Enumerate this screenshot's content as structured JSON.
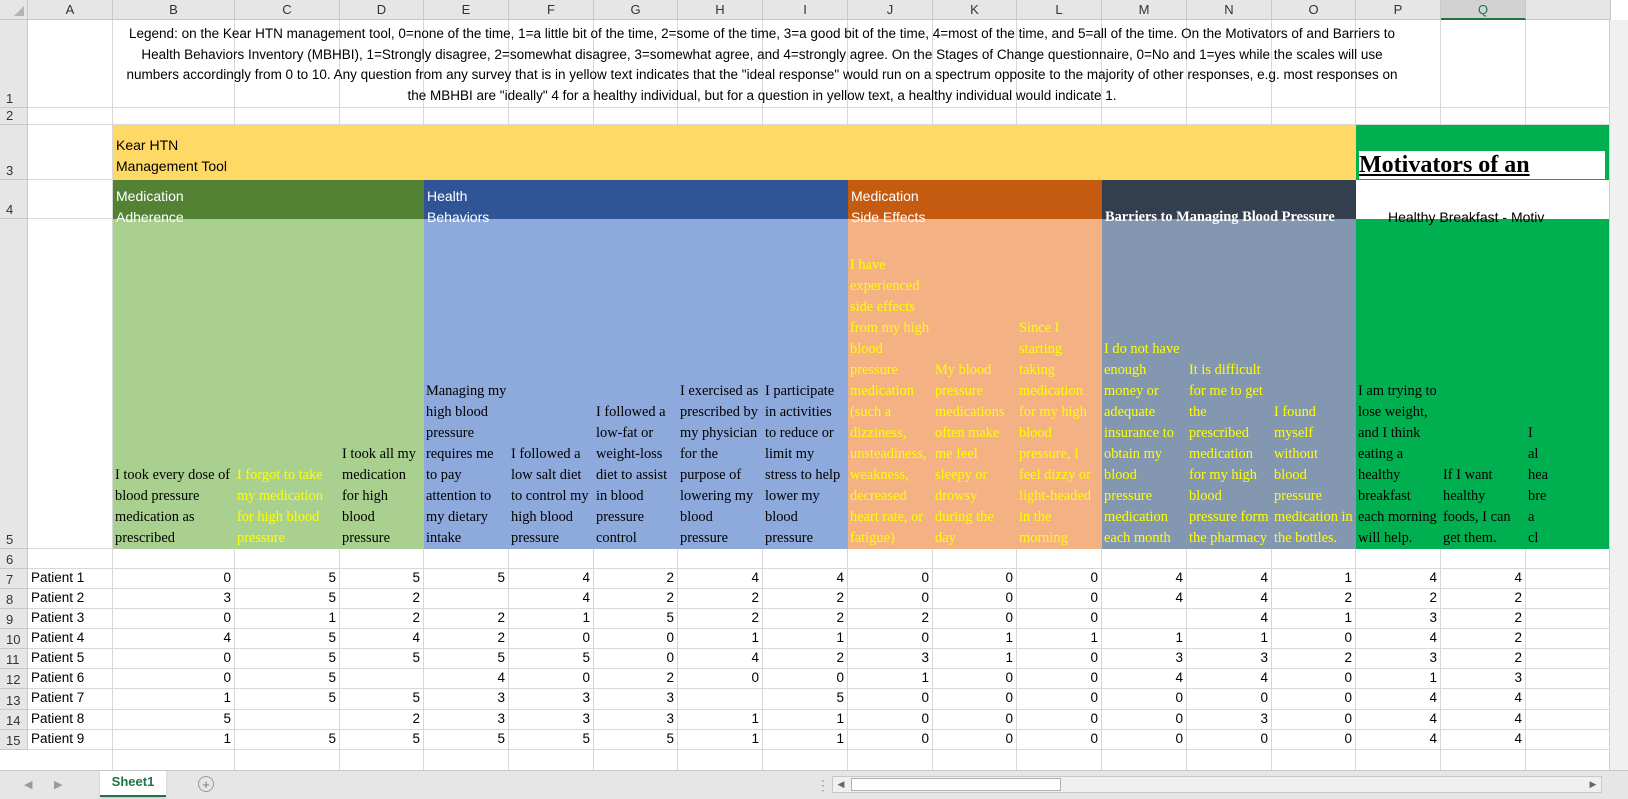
{
  "columns": [
    "A",
    "B",
    "C",
    "D",
    "E",
    "F",
    "G",
    "H",
    "I",
    "J",
    "K",
    "L",
    "M",
    "N",
    "O",
    "P",
    "Q"
  ],
  "selected_column": "Q",
  "rows": [
    "1",
    "2",
    "3",
    "4",
    "5",
    "6",
    "7",
    "8",
    "9",
    "10",
    "11",
    "12",
    "13",
    "14",
    "15"
  ],
  "legend": "Legend: on the Kear HTN management tool, 0=none of the time, 1=a little bit of the time, 2=some of the time, 3=a good bit of the time, 4=most of the time, and 5=all of the time. On the Motivators of and Barriers to Health Behaviors Inventory (MBHBI), 1=Strongly disagree, 2=somewhat disagree, 3=somewhat agree, and 4=strongly agree. On the Stages of Change questionnaire, 0=No and 1=yes while the scales will use numbers accordingly from 0 to 10. Any question from any survey that is in yellow text indicates that the \"ideal response\" would run on a spectrum opposite to the majority of other responses, e.g. most responses on the MBHBI are \"ideally\" 4 for a healthy individual, but for a question in yellow text, a healthy individual would indicate 1.",
  "kear_title_line1": "Kear HTN",
  "kear_title_line2": "Management Tool",
  "motivators_title": "Motivators of an",
  "sections": {
    "med_adherence": {
      "line1": "Medication",
      "line2": "Adherence",
      "color": "#548235",
      "light": "#a9d08e"
    },
    "health_behaviors": {
      "line1": "Health",
      "line2": "Behaviors",
      "color": "#2f5597",
      "light": "#8ea9db"
    },
    "side_effects": {
      "line1": "Medication",
      "line2": "Side Effects",
      "color": "#c55a11",
      "light": "#f4b183"
    },
    "barriers": {
      "line1": "Barriers to Managing Blood Pressure",
      "color": "#333f4f",
      "light": "#8497b0"
    },
    "breakfast": {
      "line1": "Healthy Breakfast - Motiv",
      "color": "#00b050"
    }
  },
  "questions": {
    "B": "I took every dose of blood pressure medication as prescribed",
    "C": "I forgot to take my medication for high blood pressure",
    "D": "I took all my medication for high blood pressure",
    "E": "Managing my high blood pressure requires me to pay attention to my dietary intake",
    "F": "I followed a low salt diet to control my high blood pressure",
    "G": "I followed a low-fat or weight-loss diet to assist in blood pressure control",
    "H": "I exercised as prescribed by my physician for the purpose of lowering my blood pressure",
    "I": "I participate in activities to reduce or limit my stress to help lower my blood pressure",
    "J": "I have experienced side effects from my high blood pressure medication (such a dizziness, unsteadiness, weakness, decreased heart rate, or fatigue)",
    "K": "My blood pressure medications often make me feel sleepy or drowsy during the day",
    "L": "Since I starting taking medication for my high blood pressure, I feel dizzy or light-headed in the morning",
    "M": "I do not have enough money or adequate insurance to obtain my blood pressure medication each month",
    "N": "It is difficult for me to get the prescribed medication for my high blood pressure form the pharmacy",
    "O": "I found myself without blood pressure medication in the bottles.",
    "P": "I am trying to lose weight, and I think eating a healthy breakfast each morning will help.",
    "Q": "If I want healthy foods, I can get them.",
    "R": "I al hea bre a cl"
  },
  "patients": [
    {
      "name": "Patient 1",
      "v": {
        "B": "0",
        "C": "5",
        "D": "5",
        "E": "5",
        "F": "4",
        "G": "2",
        "H": "4",
        "I": "4",
        "J": "0",
        "K": "0",
        "L": "0",
        "M": "4",
        "N": "4",
        "O": "1",
        "P": "4",
        "Q": "4"
      }
    },
    {
      "name": "Patient 2",
      "v": {
        "B": "3",
        "C": "5",
        "D": "2",
        "E": "",
        "F": "4",
        "G": "2",
        "H": "2",
        "I": "2",
        "J": "0",
        "K": "0",
        "L": "0",
        "M": "4",
        "N": "4",
        "O": "2",
        "P": "2",
        "Q": "2"
      }
    },
    {
      "name": "Patient 3",
      "v": {
        "B": "0",
        "C": "1",
        "D": "2",
        "E": "2",
        "F": "1",
        "G": "5",
        "H": "2",
        "I": "2",
        "J": "2",
        "K": "0",
        "L": "0",
        "M": "",
        "N": "4",
        "O": "1",
        "P": "3",
        "Q": "2"
      }
    },
    {
      "name": "Patient 4",
      "v": {
        "B": "4",
        "C": "5",
        "D": "4",
        "E": "2",
        "F": "0",
        "G": "0",
        "H": "1",
        "I": "1",
        "J": "0",
        "K": "1",
        "L": "1",
        "M": "1",
        "N": "1",
        "O": "0",
        "P": "4",
        "Q": "2"
      }
    },
    {
      "name": "Patient 5",
      "v": {
        "B": "0",
        "C": "5",
        "D": "5",
        "E": "5",
        "F": "5",
        "G": "0",
        "H": "4",
        "I": "2",
        "J": "3",
        "K": "1",
        "L": "0",
        "M": "3",
        "N": "3",
        "O": "2",
        "P": "3",
        "Q": "2"
      }
    },
    {
      "name": "Patient 6",
      "v": {
        "B": "0",
        "C": "5",
        "D": "",
        "E": "4",
        "F": "0",
        "G": "2",
        "H": "0",
        "I": "0",
        "J": "1",
        "K": "0",
        "L": "0",
        "M": "4",
        "N": "4",
        "O": "0",
        "P": "1",
        "Q": "3"
      }
    },
    {
      "name": "Patient 7",
      "v": {
        "B": "1",
        "C": "5",
        "D": "5",
        "E": "3",
        "F": "3",
        "G": "3",
        "H": "",
        "I": "5",
        "J": "0",
        "K": "0",
        "L": "0",
        "M": "0",
        "N": "0",
        "O": "0",
        "P": "4",
        "Q": "4"
      }
    },
    {
      "name": "Patient 8",
      "v": {
        "B": "5",
        "C": "",
        "D": "2",
        "E": "3",
        "F": "3",
        "G": "3",
        "H": "1",
        "I": "1",
        "J": "0",
        "K": "0",
        "L": "0",
        "M": "0",
        "N": "3",
        "O": "0",
        "P": "4",
        "Q": "4"
      }
    },
    {
      "name": "Patient 9",
      "v": {
        "B": "1",
        "C": "5",
        "D": "5",
        "E": "5",
        "F": "5",
        "G": "5",
        "H": "1",
        "I": "1",
        "J": "0",
        "K": "0",
        "L": "0",
        "M": "0",
        "N": "0",
        "O": "0",
        "P": "4",
        "Q": "4"
      }
    }
  ],
  "sheet_tab": "Sheet1",
  "add_sheet_symbol": "+",
  "nav_prev": "◀",
  "nav_next": "▶",
  "scroll_left": "◀",
  "scroll_right": "▶",
  "splitter": "⋮"
}
